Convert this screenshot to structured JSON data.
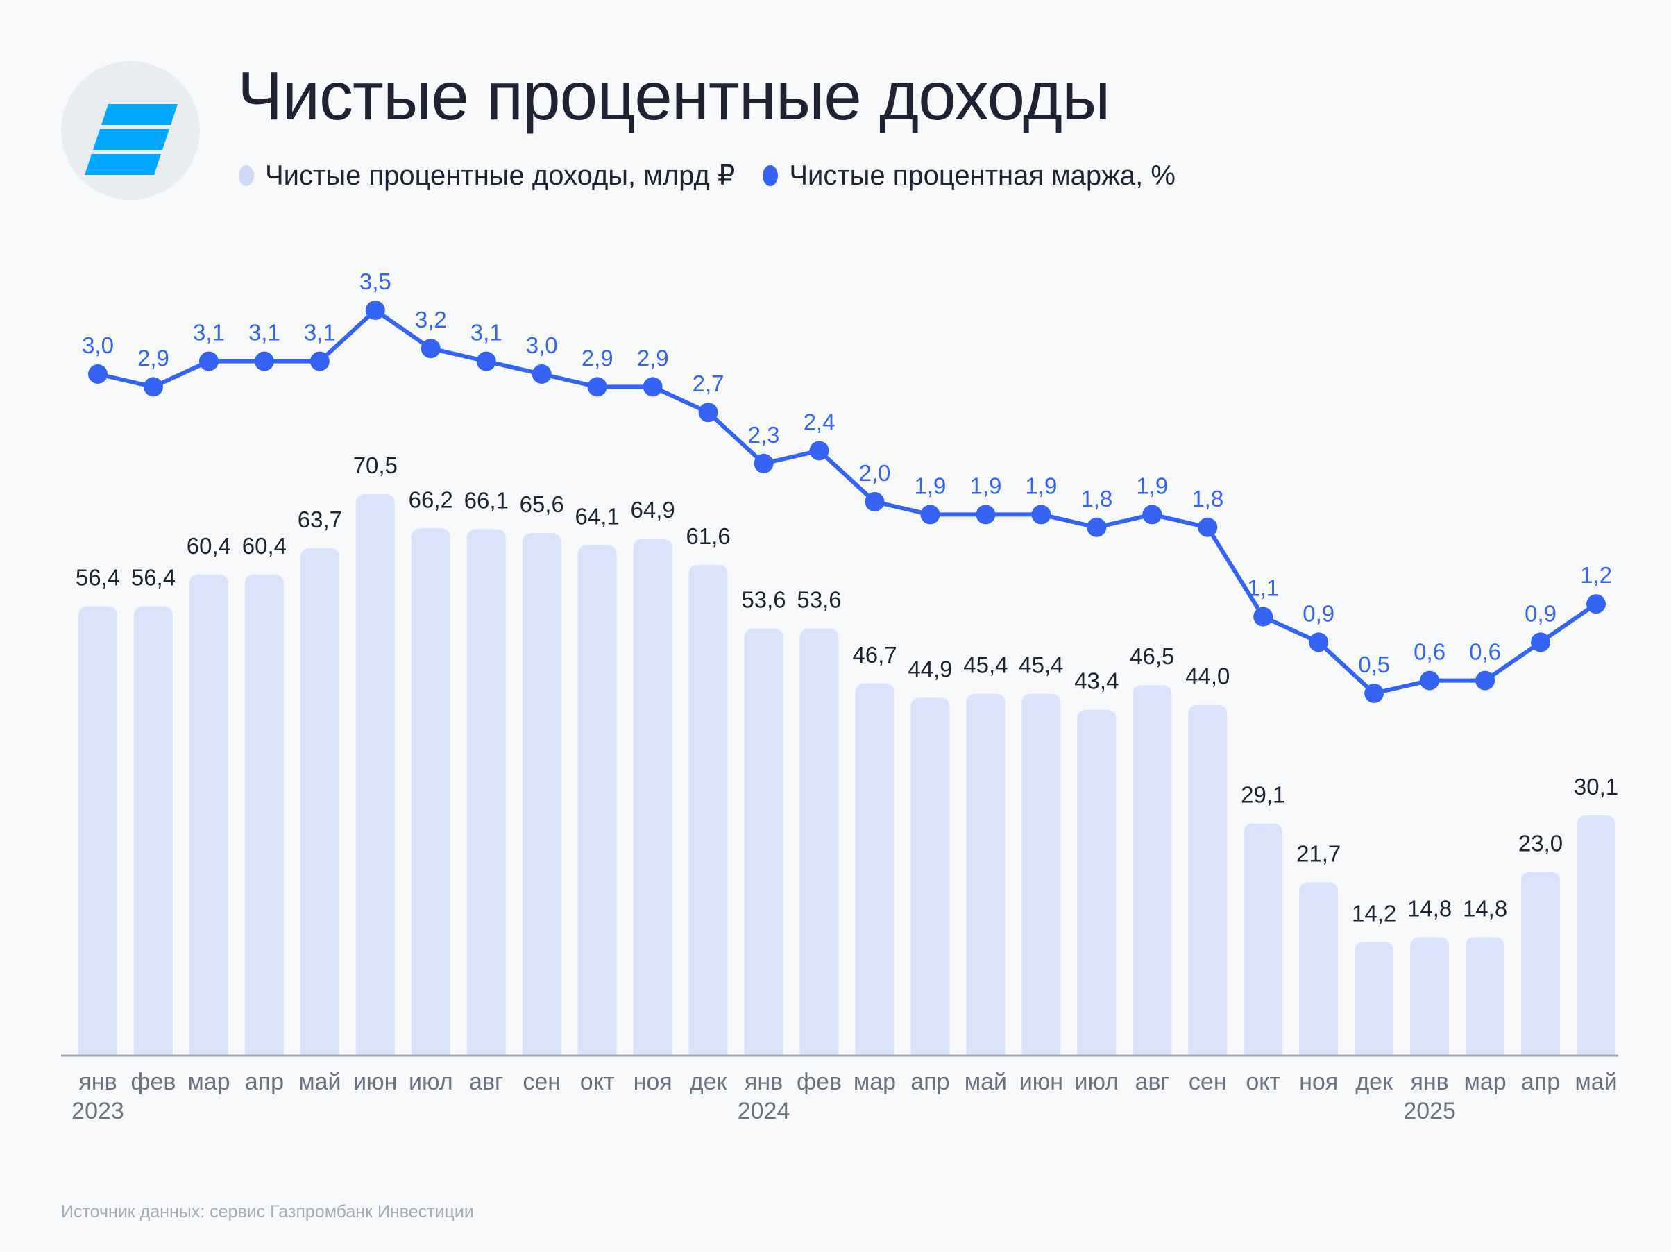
{
  "header": {
    "title": "Чистые процентные доходы",
    "logo_icon": "gazprombank-investments-logo-icon"
  },
  "legend": [
    {
      "label": "Чистые процентные доходы, млрд ₽",
      "color": "#cfd9f7",
      "icon": "circle-dot-icon"
    },
    {
      "label": "Чистые процентная маржа, %",
      "color": "#3563f2",
      "icon": "circle-dot-icon"
    }
  ],
  "footer": {
    "source": "Источник данных: сервис Газпромбанк Инвестиции"
  },
  "colors": {
    "background": "#f7f8fa",
    "bar": "#dbe3fb",
    "line": "#3563f2",
    "axis": "#a3a9b4",
    "bar_label": "#1e2233",
    "tick_label": "#6b727e",
    "logo_bg": "#e8ebf0",
    "logo_stripes": "#00a8ff"
  },
  "chart_data": {
    "type": "bar+line",
    "title": "Чистые процентные доходы",
    "categories": [
      "янв",
      "фев",
      "мар",
      "апр",
      "май",
      "июн",
      "июл",
      "авг",
      "сен",
      "окт",
      "ноя",
      "дек",
      "янв",
      "фев",
      "мар",
      "апр",
      "май",
      "июн",
      "июл",
      "авг",
      "сен",
      "окт",
      "ноя",
      "дек",
      "янв",
      "мар",
      "апр",
      "май"
    ],
    "year_labels": [
      {
        "index": 0,
        "label": "2023"
      },
      {
        "index": 12,
        "label": "2024"
      },
      {
        "index": 24,
        "label": "2025"
      }
    ],
    "series": [
      {
        "name": "Чистые процентные доходы, млрд ₽",
        "type": "bar",
        "values": [
          56.4,
          56.4,
          60.4,
          60.4,
          63.7,
          70.5,
          66.2,
          66.1,
          65.6,
          64.1,
          64.9,
          61.6,
          53.6,
          53.6,
          46.7,
          44.9,
          45.4,
          45.4,
          43.4,
          46.5,
          44.0,
          29.1,
          21.7,
          14.2,
          14.8,
          14.8,
          23.0,
          30.1
        ],
        "labels": [
          "56,4",
          "56,4",
          "60,4",
          "60,4",
          "63,7",
          "70,5",
          "66,2",
          "66,1",
          "65,6",
          "64,1",
          "64,9",
          "61,6",
          "53,6",
          "53,6",
          "46,7",
          "44,9",
          "45,4",
          "45,4",
          "43,4",
          "46,5",
          "44,0",
          "29,1",
          "21,7",
          "14,2",
          "14,8",
          "14,8",
          "23,0",
          "30,1"
        ]
      },
      {
        "name": "Чистые процентная маржа, %",
        "type": "line",
        "values": [
          3.0,
          2.9,
          3.1,
          3.1,
          3.1,
          3.5,
          3.2,
          3.1,
          3.0,
          2.9,
          2.9,
          2.7,
          2.3,
          2.4,
          2.0,
          1.9,
          1.9,
          1.9,
          1.8,
          1.9,
          1.8,
          1.1,
          0.9,
          0.5,
          0.6,
          0.6,
          0.9,
          1.2
        ],
        "labels": [
          "3,0",
          "2,9",
          "3,1",
          "3,1",
          "3,1",
          "3,5",
          "3,2",
          "3,1",
          "3,0",
          "2,9",
          "2,9",
          "2,7",
          "2,3",
          "2,4",
          "2,0",
          "1,9",
          "1,9",
          "1,9",
          "1,8",
          "1,9",
          "1,8",
          "1,1",
          "0,9",
          "0,5",
          "0,6",
          "0,6",
          "0,9",
          "1,2"
        ]
      }
    ],
    "xlabel": "",
    "ylabel": "",
    "bar_ylim": [
      0,
      75
    ],
    "line_ylim": [
      0,
      3.5
    ],
    "grid": false,
    "legend_position": "top-left"
  }
}
